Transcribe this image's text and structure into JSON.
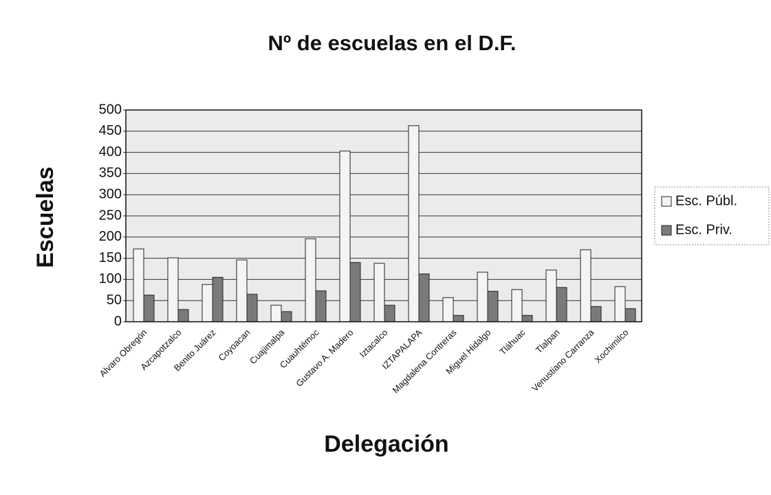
{
  "chart_data": {
    "type": "bar",
    "title": "Nº de escuelas en el D.F.",
    "x_label": "Delegación",
    "y_label": "Escuelas",
    "categories": [
      "Alvaro Obregón",
      "Azcapotzalco",
      "Benito Juárez",
      "Coyoacan",
      "Cuajimalpa",
      "Cuauhtémoc",
      "Gustavo A. Madero",
      "Iztacalco",
      "IZTAPALAPA",
      "Magdalena Contreras",
      "Miguel Hidalgo",
      "Tláhuac",
      "Tlalpan",
      "Venustiano Carranza",
      "Xochimilco"
    ],
    "series": [
      {
        "name": "Esc. Públ.",
        "color": "#f4f4f4",
        "values": [
          172,
          151,
          88,
          146,
          39,
          196,
          403,
          138,
          463,
          57,
          117,
          76,
          122,
          170,
          83
        ]
      },
      {
        "name": "Esc. Priv.",
        "color": "#7a7a7a",
        "values": [
          63,
          29,
          105,
          65,
          24,
          73,
          140,
          39,
          113,
          15,
          72,
          15,
          81,
          36,
          31
        ]
      }
    ],
    "ylim": [
      0,
      500
    ],
    "yticks": [
      0,
      50,
      100,
      150,
      200,
      250,
      300,
      350,
      400,
      450,
      500
    ],
    "grid": true,
    "legend": "right"
  }
}
